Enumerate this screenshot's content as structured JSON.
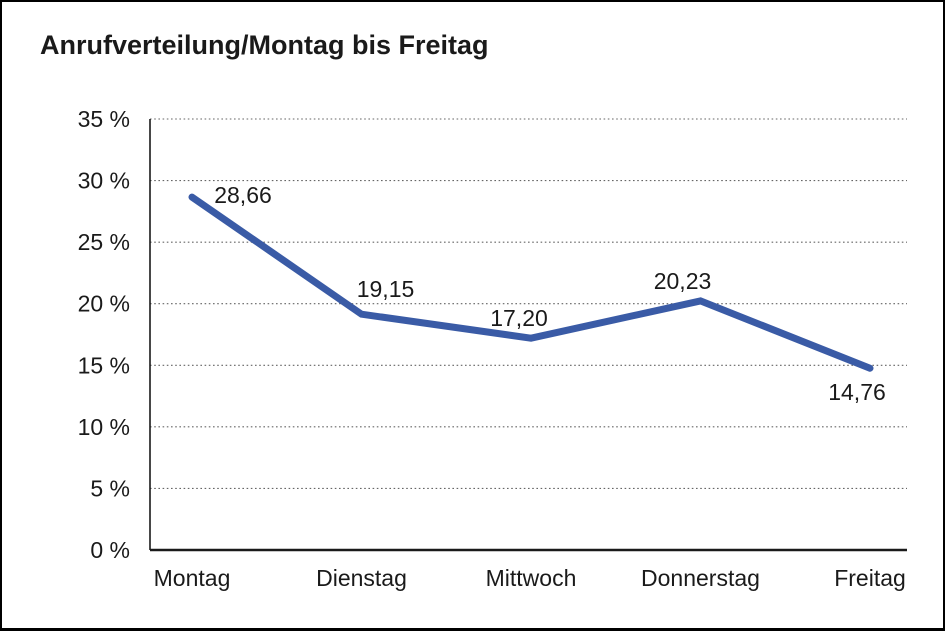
{
  "window": {
    "title": "Anrufverteilung/Montag bis Freitag"
  },
  "chart_data": {
    "type": "line",
    "title": "Anrufverteilung/Montag bis Freitag",
    "categories": [
      "Montag",
      "Dienstag",
      "Mittwoch",
      "Donnerstag",
      "Freitag"
    ],
    "series": [
      {
        "name": "Anrufverteilung",
        "values": [
          28.66,
          19.15,
          17.2,
          20.23,
          14.76
        ],
        "value_labels": [
          "28,66",
          "19,15",
          "17,20",
          "20,23",
          "14,76"
        ]
      }
    ],
    "ylim": [
      0,
      35
    ],
    "y_tick_step": 5,
    "y_ticks": [
      0,
      5,
      10,
      15,
      20,
      25,
      30,
      35
    ],
    "y_tick_labels": [
      "0 %",
      "5 %",
      "10 %",
      "15 %",
      "20 %",
      "25 %",
      "30 %",
      "35 %"
    ],
    "xlabel": "",
    "ylabel": "",
    "grid": "horizontal-dotted",
    "legend": "none",
    "colors": {
      "line": "#3A5BA6",
      "text": "#1A1A1A",
      "grid": "#666666",
      "axis": "#1A1A1A",
      "background": "#FFFFFF",
      "border": "#000000"
    }
  }
}
